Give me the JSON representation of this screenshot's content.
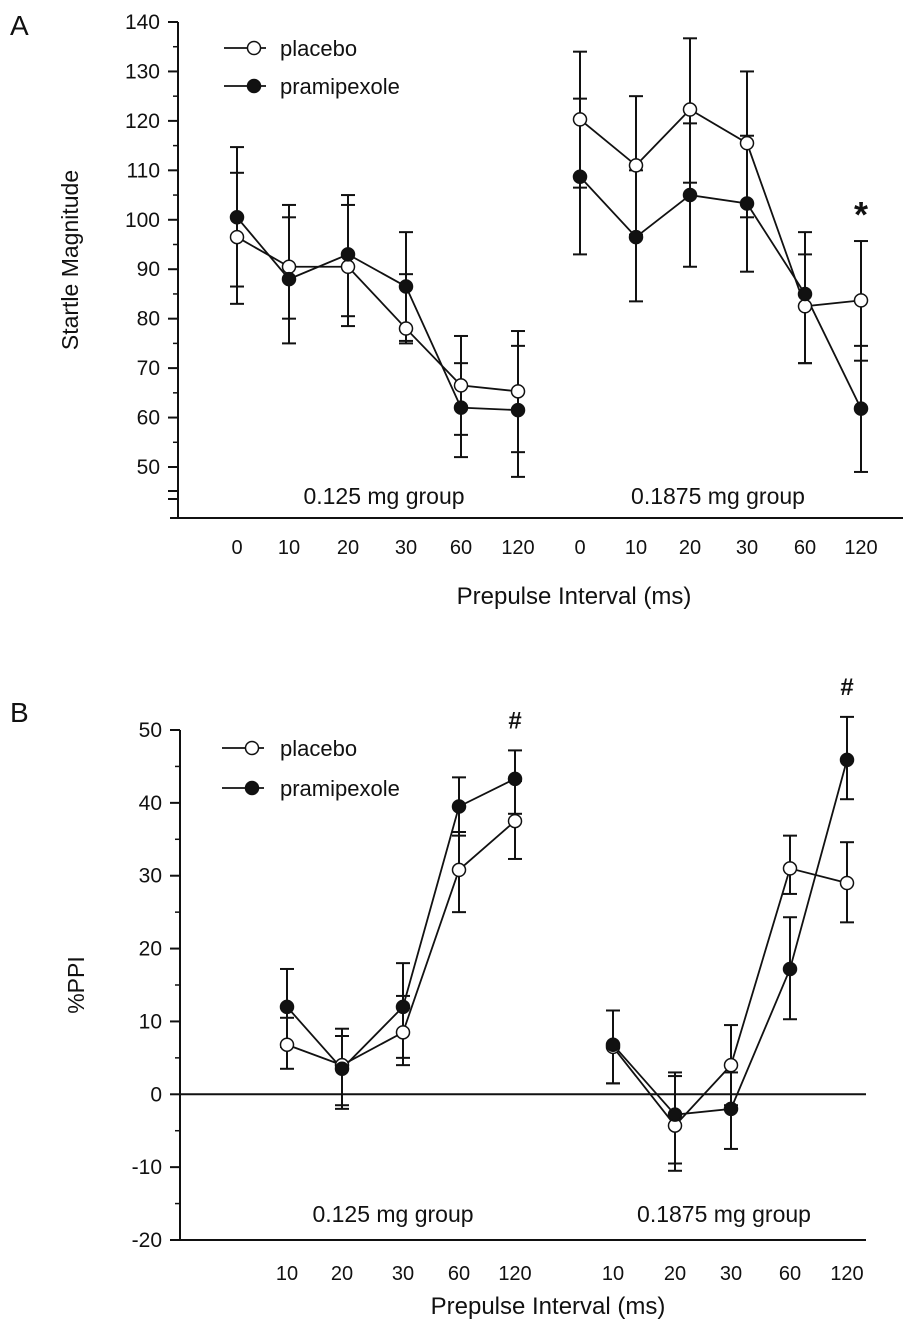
{
  "chart_data": [
    {
      "panel_label": "A",
      "type": "line",
      "ylabel": "Startle Magnitude",
      "xlabel": "Prepulse Interval (ms)",
      "yticks": [
        50,
        60,
        70,
        80,
        90,
        100,
        110,
        120,
        130,
        140
      ],
      "ylim": [
        50,
        140
      ],
      "y_axis_break": true,
      "legend": {
        "placement": "top-left",
        "labels": [
          "placebo",
          "pramipexole"
        ]
      },
      "groups": [
        {
          "label": "0.125 mg group",
          "x": [
            "0",
            "10",
            "20",
            "30",
            "60",
            "120"
          ],
          "series": [
            {
              "name": "placebo",
              "marker": "open-circle",
              "values": [
                96.5,
                90.5,
                90.5,
                78,
                66.5,
                65.3
              ],
              "err_upper": [
                109.5,
                100.5,
                103,
                89,
                76.5,
                77.5
              ],
              "err_lower": [
                83,
                80,
                78.5,
                75,
                56.5,
                53
              ]
            },
            {
              "name": "pramipexole",
              "marker": "filled-circle",
              "values": [
                100.5,
                88,
                93,
                86.5,
                62,
                61.5
              ],
              "err_upper": [
                114.7,
                103,
                105,
                97.5,
                71,
                74.5
              ],
              "err_lower": [
                86.5,
                75,
                80.5,
                75.5,
                52,
                48
              ]
            }
          ]
        },
        {
          "label": "0.1875 mg group",
          "x": [
            "0",
            "10",
            "20",
            "30",
            "60",
            "120"
          ],
          "series": [
            {
              "name": "placebo",
              "marker": "open-circle",
              "values": [
                120.3,
                111,
                122.3,
                115.5,
                82.5,
                83.7
              ],
              "err_upper": [
                134,
                125,
                136.7,
                130,
                93,
                95.7
              ],
              "err_lower": [
                106.5,
                97,
                107.5,
                100.5,
                71,
                71.5
              ]
            },
            {
              "name": "pramipexole",
              "marker": "filled-circle",
              "values": [
                108.7,
                96.5,
                105,
                103.3,
                85,
                61.8
              ],
              "err_upper": [
                124.5,
                110,
                119.5,
                117,
                97.5,
                74.5
              ],
              "err_lower": [
                93,
                83.5,
                90.5,
                89.5,
                71,
                49
              ]
            }
          ]
        }
      ],
      "annotations": [
        {
          "text": "*",
          "group": 1,
          "x": "120"
        }
      ]
    },
    {
      "panel_label": "B",
      "type": "line",
      "ylabel": "%PPI",
      "xlabel": "Prepulse Interval (ms)",
      "yticks": [
        -20,
        -10,
        0,
        10,
        20,
        30,
        40,
        50
      ],
      "ylim": [
        -20,
        50
      ],
      "zero_line": true,
      "legend": {
        "placement": "top-left",
        "labels": [
          "placebo",
          "pramipexole"
        ]
      },
      "groups": [
        {
          "label": "0.125 mg group",
          "x": [
            "10",
            "20",
            "30",
            "60",
            "120"
          ],
          "series": [
            {
              "name": "placebo",
              "marker": "open-circle",
              "values": [
                6.8,
                4,
                8.5,
                30.8,
                37.5
              ],
              "err_upper": [
                10.5,
                9,
                13.5,
                36,
                43
              ],
              "err_lower": [
                3.5,
                -1.5,
                4,
                25,
                32.3
              ]
            },
            {
              "name": "pramipexole",
              "marker": "filled-circle",
              "values": [
                12,
                3.5,
                12,
                39.5,
                43.3
              ],
              "err_upper": [
                17.2,
                8,
                18,
                43.5,
                47.2
              ],
              "err_lower": [
                6.5,
                -2,
                5,
                35.5,
                38.5
              ]
            }
          ]
        },
        {
          "label": "0.1875 mg group",
          "x": [
            "10",
            "20",
            "30",
            "60",
            "120"
          ],
          "series": [
            {
              "name": "placebo",
              "marker": "open-circle",
              "values": [
                6.5,
                -4.3,
                4,
                31,
                29
              ],
              "err_upper": [
                11.5,
                2.5,
                9.5,
                35.5,
                34.6
              ],
              "err_lower": [
                1.5,
                -10.5,
                -1.5,
                27.5,
                23.6
              ]
            },
            {
              "name": "pramipexole",
              "marker": "filled-circle",
              "values": [
                6.8,
                -2.8,
                -2,
                17.2,
                45.9
              ],
              "err_upper": [
                11.5,
                3,
                3,
                24.3,
                51.8
              ],
              "err_lower": [
                1.5,
                -9.5,
                -7.5,
                10.3,
                40.5
              ]
            }
          ]
        }
      ],
      "annotations": [
        {
          "text": "#",
          "group": 0,
          "x": "120"
        },
        {
          "text": "#",
          "group": 1,
          "x": "120"
        }
      ]
    }
  ]
}
